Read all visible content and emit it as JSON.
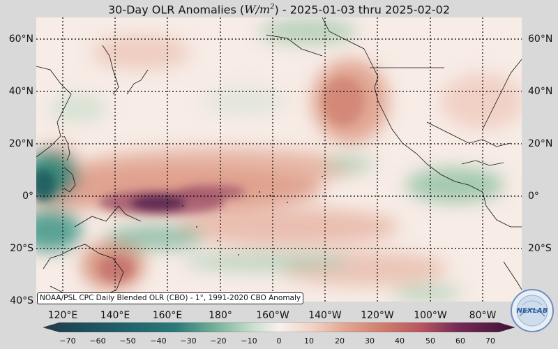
{
  "title": {
    "prefix": "30-Day OLR Anomalies (",
    "unit_main": "W/m",
    "unit_exp": "2",
    "suffix": ") - 2025-01-03 thru 2025-02-02"
  },
  "lat_labels": [
    "60°N",
    "40°N",
    "20°N",
    "0°",
    "20°S",
    "40°S"
  ],
  "lon_labels": [
    "120°E",
    "140°E",
    "160°E",
    "180°",
    "160°W",
    "140°W",
    "120°W",
    "100°W",
    "80°W"
  ],
  "credit": "NOAA/PSL CPC Daily Blended OLR (CBO) - 1°, 1991-2020 CBO Anomaly",
  "colorbar": {
    "ticks": [
      "−70",
      "−60",
      "−50",
      "−40",
      "−30",
      "−20",
      "−10",
      "0",
      "10",
      "20",
      "30",
      "40",
      "50",
      "60",
      "70"
    ],
    "colors": [
      "#1d3b4a",
      "#1f5a66",
      "#2a7a78",
      "#3f9485",
      "#70ae96",
      "#a8cbb0",
      "#d8e7d8",
      "#f7f1ee",
      "#f1d3c6",
      "#e3a792",
      "#cf7d6c",
      "#ba5660",
      "#9a3a5e",
      "#742a55",
      "#4e1a44"
    ]
  },
  "logo_text": "NEXLAB",
  "colors": {
    "negative": "#2a7a78",
    "positive": "#ba5660",
    "background": "#d9d9d9"
  }
}
